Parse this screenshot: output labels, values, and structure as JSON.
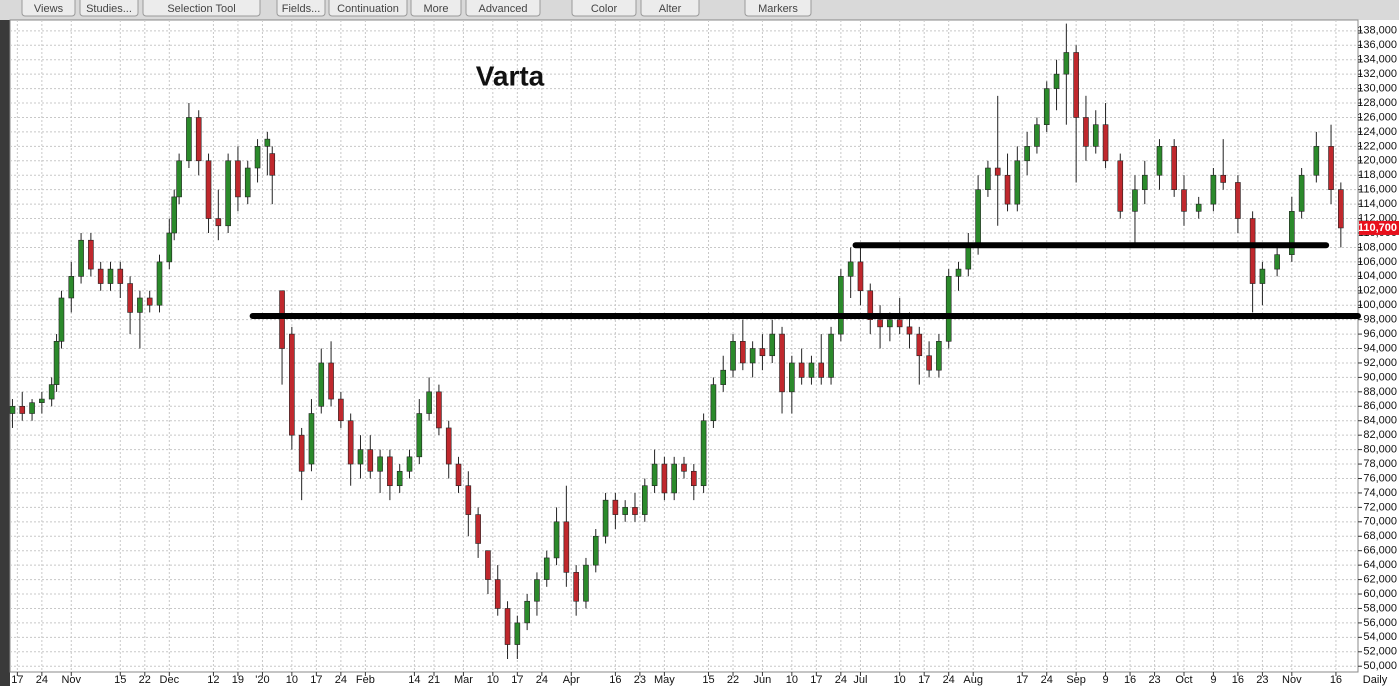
{
  "toolbar": [
    "Views",
    "Studies...",
    "Selection Tool",
    "Fields...",
    "Continuation",
    "More",
    "Advanced",
    "Color",
    "Alter",
    "Markers"
  ],
  "chart_data": {
    "type": "candlestick",
    "title": "Varta",
    "period_label": "Daily",
    "last_price": 110700,
    "last_price_label": "110,700",
    "up_color": "#2b8a2b",
    "down_color": "#c0282d",
    "grid": true,
    "xlim": [
      -0.5,
      274.5
    ],
    "ylim": [
      49200,
      139500
    ],
    "xticks": [
      {
        "value": 1,
        "label": "17"
      },
      {
        "value": 6,
        "label": "24"
      },
      {
        "value": 12,
        "label": "Nov"
      },
      {
        "value": 22,
        "label": "15"
      },
      {
        "value": 27,
        "label": "22"
      },
      {
        "value": 32,
        "label": "Dec"
      },
      {
        "value": 41,
        "label": "12"
      },
      {
        "value": 46,
        "label": "19"
      },
      {
        "value": 51,
        "label": "'20"
      },
      {
        "value": 57,
        "label": "10"
      },
      {
        "value": 62,
        "label": "17"
      },
      {
        "value": 67,
        "label": "24"
      },
      {
        "value": 72,
        "label": "Feb"
      },
      {
        "value": 82,
        "label": "14"
      },
      {
        "value": 86,
        "label": "21"
      },
      {
        "value": 92,
        "label": "Mar"
      },
      {
        "value": 98,
        "label": "10"
      },
      {
        "value": 103,
        "label": "17"
      },
      {
        "value": 108,
        "label": "24"
      },
      {
        "value": 114,
        "label": "Apr"
      },
      {
        "value": 123,
        "label": "16"
      },
      {
        "value": 128,
        "label": "23"
      },
      {
        "value": 133,
        "label": "May"
      },
      {
        "value": 142,
        "label": "15"
      },
      {
        "value": 147,
        "label": "22"
      },
      {
        "value": 153,
        "label": "Jun"
      },
      {
        "value": 159,
        "label": "10"
      },
      {
        "value": 164,
        "label": "17"
      },
      {
        "value": 169,
        "label": "24"
      },
      {
        "value": 173,
        "label": "Jul"
      },
      {
        "value": 181,
        "label": "10"
      },
      {
        "value": 186,
        "label": "17"
      },
      {
        "value": 191,
        "label": "24"
      },
      {
        "value": 196,
        "label": "Aug"
      },
      {
        "value": 206,
        "label": "17"
      },
      {
        "value": 211,
        "label": "24"
      },
      {
        "value": 217,
        "label": "Sep"
      },
      {
        "value": 223,
        "label": "9"
      },
      {
        "value": 228,
        "label": "16"
      },
      {
        "value": 233,
        "label": "23"
      },
      {
        "value": 239,
        "label": "Oct"
      },
      {
        "value": 245,
        "label": "9"
      },
      {
        "value": 250,
        "label": "16"
      },
      {
        "value": 255,
        "label": "23"
      },
      {
        "value": 261,
        "label": "Nov"
      },
      {
        "value": 270,
        "label": "16"
      }
    ],
    "yticks": [
      {
        "value": 50000,
        "label": "50,000"
      },
      {
        "value": 52000,
        "label": "52,000"
      },
      {
        "value": 54000,
        "label": "54,000"
      },
      {
        "value": 56000,
        "label": "56,000"
      },
      {
        "value": 58000,
        "label": "58,000"
      },
      {
        "value": 60000,
        "label": "60,000"
      },
      {
        "value": 62000,
        "label": "62,000"
      },
      {
        "value": 64000,
        "label": "64,000"
      },
      {
        "value": 66000,
        "label": "66,000"
      },
      {
        "value": 68000,
        "label": "68,000"
      },
      {
        "value": 70000,
        "label": "70,000"
      },
      {
        "value": 72000,
        "label": "72,000"
      },
      {
        "value": 74000,
        "label": "74,000"
      },
      {
        "value": 76000,
        "label": "76,000"
      },
      {
        "value": 78000,
        "label": "78,000"
      },
      {
        "value": 80000,
        "label": "80,000"
      },
      {
        "value": 82000,
        "label": "82,000"
      },
      {
        "value": 84000,
        "label": "84,000"
      },
      {
        "value": 86000,
        "label": "86,000"
      },
      {
        "value": 88000,
        "label": "88,000"
      },
      {
        "value": 90000,
        "label": "90,000"
      },
      {
        "value": 92000,
        "label": "92,000"
      },
      {
        "value": 94000,
        "label": "94,000"
      },
      {
        "value": 96000,
        "label": "96,000"
      },
      {
        "value": 98000,
        "label": "98,000"
      },
      {
        "value": 100000,
        "label": "100,000"
      },
      {
        "value": 102000,
        "label": "102,000"
      },
      {
        "value": 104000,
        "label": "104,000"
      },
      {
        "value": 106000,
        "label": "106,000"
      },
      {
        "value": 108000,
        "label": "108,000"
      },
      {
        "value": 110000,
        "label": "110,000"
      },
      {
        "value": 112000,
        "label": "112,000"
      },
      {
        "value": 114000,
        "label": "114,000"
      },
      {
        "value": 116000,
        "label": "116,000"
      },
      {
        "value": 118000,
        "label": "118,000"
      },
      {
        "value": 120000,
        "label": "120,000"
      },
      {
        "value": 122000,
        "label": "122,000"
      },
      {
        "value": 124000,
        "label": "124,000"
      },
      {
        "value": 126000,
        "label": "126,000"
      },
      {
        "value": 128000,
        "label": "128,000"
      },
      {
        "value": 130000,
        "label": "130,000"
      },
      {
        "value": 132000,
        "label": "132,000"
      },
      {
        "value": 134000,
        "label": "134,000"
      },
      {
        "value": 136000,
        "label": "136,000"
      },
      {
        "value": 138000,
        "label": "138,000"
      }
    ],
    "support_lines": [
      {
        "value": 98500,
        "x_start": 49,
        "x_end": 274.5
      },
      {
        "value": 108300,
        "x_start": 172,
        "x_end": 268
      }
    ],
    "x": [
      0,
      2,
      4,
      6,
      8,
      9,
      10,
      12,
      14,
      16,
      18,
      20,
      22,
      24,
      26,
      28,
      30,
      32,
      33,
      34,
      36,
      38,
      40,
      42,
      44,
      46,
      48,
      50,
      52,
      53,
      55,
      57,
      59,
      61,
      63,
      65,
      67,
      69,
      71,
      73,
      75,
      77,
      79,
      81,
      83,
      85,
      87,
      89,
      91,
      93,
      95,
      97,
      99,
      101,
      103,
      105,
      107,
      109,
      111,
      113,
      115,
      117,
      119,
      121,
      123,
      125,
      127,
      129,
      131,
      133,
      135,
      137,
      139,
      141,
      143,
      145,
      147,
      149,
      151,
      153,
      155,
      157,
      159,
      161,
      163,
      165,
      167,
      169,
      171,
      173,
      175,
      177,
      179,
      181,
      183,
      185,
      187,
      189,
      191,
      193,
      195,
      197,
      199,
      201,
      203,
      205,
      207,
      209,
      211,
      213,
      215,
      217,
      219,
      221,
      223,
      226,
      229,
      231,
      234,
      237,
      239,
      242,
      245,
      247,
      250,
      253,
      255,
      258,
      261,
      263,
      266,
      269,
      271
    ],
    "ohlc": [
      [
        85000,
        87000,
        83000,
        86000
      ],
      [
        86000,
        88000,
        84000,
        85000
      ],
      [
        85000,
        87000,
        84000,
        86500
      ],
      [
        86500,
        88000,
        85000,
        87000
      ],
      [
        87000,
        90000,
        86000,
        89000
      ],
      [
        89000,
        96000,
        88000,
        95000
      ],
      [
        95000,
        102000,
        94000,
        101000
      ],
      [
        101000,
        106000,
        99000,
        104000
      ],
      [
        104000,
        110000,
        103000,
        109000
      ],
      [
        109000,
        110000,
        104000,
        105000
      ],
      [
        105000,
        106000,
        102000,
        103000
      ],
      [
        103000,
        106000,
        102000,
        105000
      ],
      [
        105000,
        106000,
        101000,
        103000
      ],
      [
        103000,
        104000,
        96000,
        99000
      ],
      [
        99000,
        102000,
        94000,
        101000
      ],
      [
        101000,
        102000,
        99000,
        100000
      ],
      [
        100000,
        107000,
        99000,
        106000
      ],
      [
        106000,
        112000,
        105000,
        110000
      ],
      [
        110000,
        116000,
        109000,
        115000
      ],
      [
        115000,
        121000,
        114000,
        120000
      ],
      [
        120000,
        128000,
        119000,
        126000
      ],
      [
        126000,
        127000,
        118000,
        120000
      ],
      [
        120000,
        121000,
        110000,
        112000
      ],
      [
        112000,
        116000,
        109000,
        111000
      ],
      [
        111000,
        121000,
        110000,
        120000
      ],
      [
        120000,
        122000,
        113000,
        115000
      ],
      [
        115000,
        120000,
        114000,
        119000
      ],
      [
        119000,
        123000,
        117000,
        122000
      ],
      [
        122000,
        124000,
        118000,
        123000
      ],
      [
        121000,
        122000,
        114000,
        118000
      ],
      [
        102000,
        102000,
        89000,
        94000
      ],
      [
        96000,
        97000,
        80000,
        82000
      ],
      [
        82000,
        83000,
        73000,
        77000
      ],
      [
        78000,
        87000,
        77000,
        85000
      ],
      [
        86000,
        94000,
        85000,
        92000
      ],
      [
        92000,
        95000,
        86000,
        87000
      ],
      [
        87000,
        88000,
        83000,
        84000
      ],
      [
        84000,
        85000,
        75000,
        78000
      ],
      [
        78000,
        82000,
        76000,
        80000
      ],
      [
        80000,
        82000,
        76000,
        77000
      ],
      [
        77000,
        80000,
        74000,
        79000
      ],
      [
        79000,
        80000,
        73000,
        75000
      ],
      [
        75000,
        78000,
        74000,
        77000
      ],
      [
        77000,
        80000,
        76000,
        79000
      ],
      [
        79000,
        87000,
        78000,
        85000
      ],
      [
        85000,
        90000,
        84000,
        88000
      ],
      [
        88000,
        89000,
        82000,
        83000
      ],
      [
        83000,
        84000,
        76000,
        78000
      ],
      [
        78000,
        79000,
        74000,
        75000
      ],
      [
        75000,
        77000,
        68000,
        71000
      ],
      [
        71000,
        72000,
        65000,
        67000
      ],
      [
        66000,
        66000,
        60000,
        62000
      ],
      [
        62000,
        64000,
        57000,
        58000
      ],
      [
        58000,
        59000,
        51000,
        53000
      ],
      [
        53000,
        57000,
        51000,
        56000
      ],
      [
        56000,
        60000,
        55000,
        59000
      ],
      [
        59000,
        63000,
        57000,
        62000
      ],
      [
        62000,
        66000,
        61000,
        65000
      ],
      [
        65000,
        72000,
        64000,
        70000
      ],
      [
        70000,
        75000,
        61000,
        63000
      ],
      [
        63000,
        64000,
        57000,
        59000
      ],
      [
        59000,
        65000,
        58000,
        64000
      ],
      [
        64000,
        69000,
        63000,
        68000
      ],
      [
        68000,
        74000,
        67000,
        73000
      ],
      [
        73000,
        74000,
        69000,
        71000
      ],
      [
        71000,
        73000,
        70000,
        72000
      ],
      [
        72000,
        74000,
        70000,
        71000
      ],
      [
        71000,
        76000,
        70000,
        75000
      ],
      [
        75000,
        80000,
        74000,
        78000
      ],
      [
        78000,
        79000,
        73000,
        74000
      ],
      [
        74000,
        79000,
        73000,
        78000
      ],
      [
        78000,
        79000,
        76000,
        77000
      ],
      [
        77000,
        78000,
        73000,
        75000
      ],
      [
        75000,
        85000,
        74000,
        84000
      ],
      [
        84000,
        90000,
        83000,
        89000
      ],
      [
        89000,
        93000,
        88000,
        91000
      ],
      [
        91000,
        96000,
        90000,
        95000
      ],
      [
        95000,
        98000,
        91000,
        92000
      ],
      [
        92000,
        95000,
        90000,
        94000
      ],
      [
        94000,
        96000,
        91000,
        93000
      ],
      [
        93000,
        98000,
        92000,
        96000
      ],
      [
        96000,
        97000,
        85000,
        88000
      ],
      [
        88000,
        93000,
        85000,
        92000
      ],
      [
        92000,
        94000,
        89000,
        90000
      ],
      [
        90000,
        93000,
        89000,
        92000
      ],
      [
        92000,
        96000,
        89000,
        90000
      ],
      [
        90000,
        97000,
        89000,
        96000
      ],
      [
        96000,
        105000,
        95000,
        104000
      ],
      [
        104000,
        108000,
        101000,
        106000
      ],
      [
        106000,
        108000,
        100000,
        102000
      ],
      [
        102000,
        103000,
        96000,
        98000
      ],
      [
        98000,
        100000,
        94000,
        97000
      ],
      [
        97000,
        99000,
        95000,
        98000
      ],
      [
        98000,
        101000,
        96000,
        97000
      ],
      [
        97000,
        99000,
        94000,
        96000
      ],
      [
        96000,
        97000,
        89000,
        93000
      ],
      [
        93000,
        95000,
        90000,
        91000
      ],
      [
        91000,
        96000,
        90000,
        95000
      ],
      [
        95000,
        105000,
        94000,
        104000
      ],
      [
        104000,
        106000,
        102000,
        105000
      ],
      [
        105000,
        110000,
        104000,
        108000
      ],
      [
        108000,
        118000,
        107000,
        116000
      ],
      [
        116000,
        120000,
        115000,
        119000
      ],
      [
        119000,
        129000,
        111000,
        118000
      ],
      [
        118000,
        121000,
        113000,
        114000
      ],
      [
        114000,
        122000,
        113000,
        120000
      ],
      [
        120000,
        124000,
        118000,
        122000
      ],
      [
        122000,
        126000,
        121000,
        125000
      ],
      [
        125000,
        131000,
        124000,
        130000
      ],
      [
        130000,
        134000,
        127000,
        132000
      ],
      [
        132000,
        139000,
        125000,
        135000
      ],
      [
        135000,
        136000,
        117000,
        126000
      ],
      [
        126000,
        129000,
        120000,
        122000
      ],
      [
        122000,
        127000,
        121000,
        125000
      ],
      [
        125000,
        128000,
        119000,
        120000
      ],
      [
        120000,
        121000,
        112000,
        113000
      ],
      [
        113000,
        118000,
        108000,
        116000
      ],
      [
        116000,
        120000,
        114000,
        118000
      ],
      [
        118000,
        123000,
        116000,
        122000
      ],
      [
        122000,
        123000,
        115000,
        116000
      ],
      [
        116000,
        118000,
        111000,
        113000
      ],
      [
        113000,
        115000,
        112000,
        114000
      ],
      [
        114000,
        119000,
        113000,
        118000
      ],
      [
        118000,
        123000,
        116000,
        117000
      ],
      [
        117000,
        118000,
        110000,
        112000
      ],
      [
        112000,
        113000,
        99000,
        103000
      ],
      [
        103000,
        106000,
        100000,
        105000
      ],
      [
        105000,
        108000,
        104000,
        107000
      ],
      [
        107000,
        115000,
        106000,
        113000
      ],
      [
        113000,
        119000,
        112000,
        118000
      ],
      [
        118000,
        124000,
        117000,
        122000
      ],
      [
        122000,
        125000,
        114000,
        116000
      ],
      [
        116000,
        117000,
        108000,
        110700
      ]
    ]
  }
}
